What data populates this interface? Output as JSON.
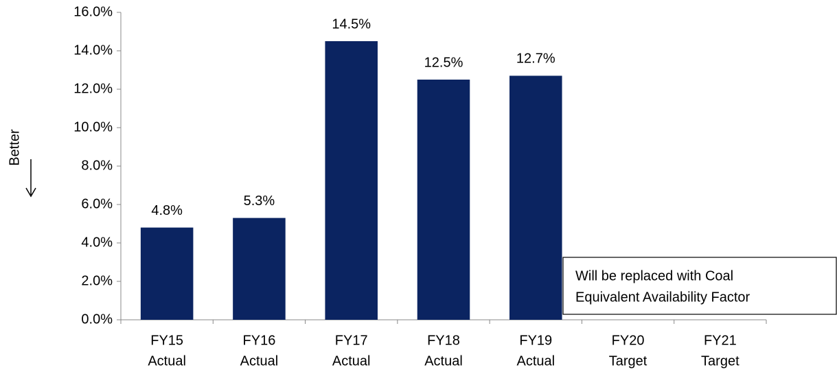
{
  "chart_data": {
    "type": "bar",
    "categories": [
      [
        "FY15",
        "Actual"
      ],
      [
        "FY16",
        "Actual"
      ],
      [
        "FY17",
        "Actual"
      ],
      [
        "FY18",
        "Actual"
      ],
      [
        "FY19",
        "Actual"
      ],
      [
        "FY20",
        "Target"
      ],
      [
        "FY21",
        "Target"
      ]
    ],
    "values": [
      4.8,
      5.3,
      14.5,
      12.5,
      12.7,
      null,
      null
    ],
    "value_labels": [
      "4.8%",
      "5.3%",
      "14.5%",
      "12.5%",
      "12.7%",
      null,
      null
    ],
    "color": "#0b2461",
    "ylim": [
      0,
      16
    ],
    "yticks": [
      {
        "value": 0,
        "label": "0.0%"
      },
      {
        "value": 2,
        "label": "2.0%"
      },
      {
        "value": 4,
        "label": "4.0%"
      },
      {
        "value": 6,
        "label": "6.0%"
      },
      {
        "value": 8,
        "label": "8.0%"
      },
      {
        "value": 10,
        "label": "10.0%"
      },
      {
        "value": 12,
        "label": "12.0%"
      },
      {
        "value": 14,
        "label": "14.0%"
      },
      {
        "value": 16,
        "label": "16.0%"
      }
    ],
    "y_annotation": "Better",
    "annotation": [
      "Will be replaced with Coal",
      "Equivalent Availability Factor"
    ]
  }
}
